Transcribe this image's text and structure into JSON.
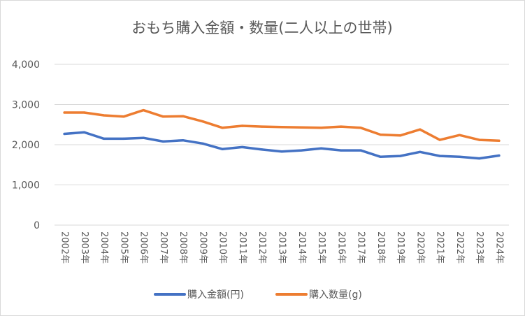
{
  "chart_data": {
    "type": "line",
    "title": "おもち購入金額・数量(二人以上の世帯)",
    "categories": [
      "2002年",
      "2003年",
      "2004年",
      "2005年",
      "2006年",
      "2007年",
      "2008年",
      "2009年",
      "2010年",
      "2011年",
      "2012年",
      "2013年",
      "2014年",
      "2015年",
      "2016年",
      "2017年",
      "2018年",
      "2019年",
      "2020年",
      "2021年",
      "2022年",
      "2023年",
      "2024年"
    ],
    "series": [
      {
        "name": "購入金額(円)",
        "color": "#4472C4",
        "values": [
          2270,
          2310,
          2150,
          2150,
          2170,
          2080,
          2110,
          2030,
          1890,
          1940,
          1880,
          1830,
          1860,
          1910,
          1860,
          1860,
          1700,
          1720,
          1820,
          1720,
          1700,
          1660,
          1730
        ]
      },
      {
        "name": "購入数量(g)",
        "color": "#ED7D31",
        "values": [
          2800,
          2800,
          2730,
          2700,
          2860,
          2700,
          2710,
          2580,
          2420,
          2470,
          2450,
          2440,
          2430,
          2420,
          2450,
          2420,
          2250,
          2230,
          2380,
          2120,
          2240,
          2120,
          2100
        ]
      }
    ],
    "yticks": [
      "4,000",
      "3,000",
      "2,000",
      "1,000",
      "0"
    ],
    "ylim": [
      0,
      4000
    ],
    "grid": true,
    "legend_position": "bottom"
  }
}
